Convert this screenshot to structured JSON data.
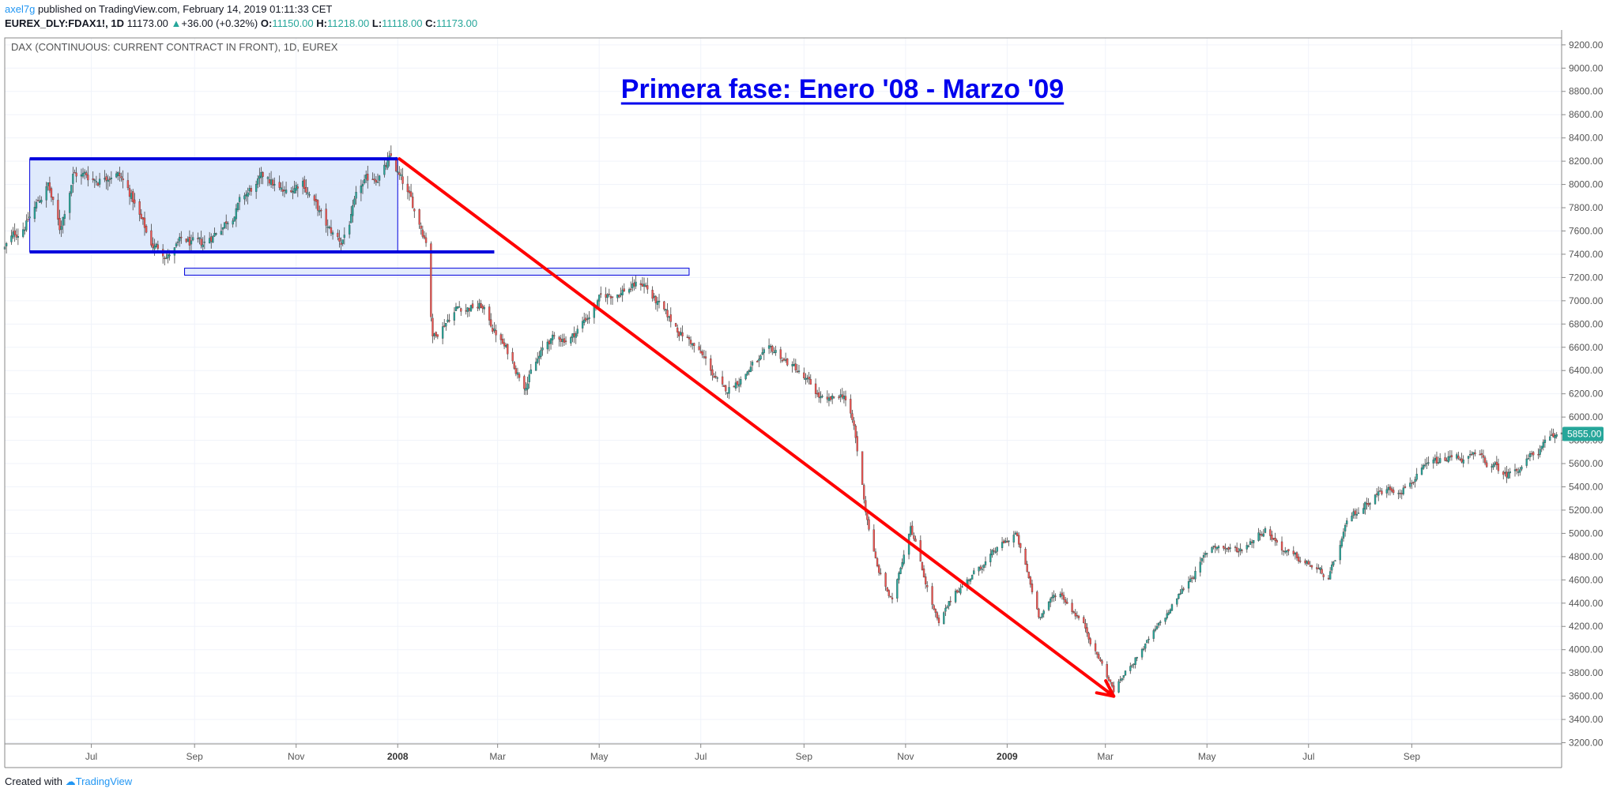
{
  "header": {
    "author": "axel7g",
    "published_text": "published on TradingView.com, February 14, 2019 01:11:33 CET",
    "symbol": "EUREX_DLY:FDAX1!, 1D",
    "last": "11173.00",
    "change": "+36.00 (+0.32%)",
    "open_label": "O:",
    "open": "11150.00",
    "high_label": "H:",
    "high": "11218.00",
    "low_label": "L:",
    "low": "11118.00",
    "close_label": "C:",
    "close": "11173.00"
  },
  "footer": {
    "created_text": "Created with",
    "brand": "TradingView"
  },
  "chart_data": {
    "type": "candlestick",
    "instrument_label": "DAX (CONTINUOUS: CURRENT CONTRACT IN FRONT), 1D, EUREX",
    "title": "Primera fase: Enero '08 - Marzo '09",
    "y_ticks": [
      3200,
      3400,
      3600,
      3800,
      4000,
      4200,
      4400,
      4600,
      4800,
      5000,
      5200,
      5400,
      5600,
      5800,
      6000,
      6200,
      6400,
      6600,
      6800,
      7000,
      7200,
      7400,
      7600,
      7800,
      8000,
      8200,
      8400,
      8600,
      8800,
      9000,
      9200
    ],
    "y_tick_labels": [
      "3200.00",
      "3400.00",
      "3600.00",
      "3800.00",
      "4000.00",
      "4200.00",
      "4400.00",
      "4600.00",
      "4800.00",
      "5000.00",
      "5200.00",
      "5400.00",
      "5600.00",
      "5800.00",
      "6000.00",
      "6200.00",
      "6400.00",
      "6600.00",
      "6800.00",
      "7000.00",
      "7200.00",
      "7400.00",
      "7600.00",
      "7800.00",
      "8000.00",
      "8200.00",
      "8400.00",
      "8600.00",
      "8800.00",
      "9000.00",
      "9200.00"
    ],
    "ylim": [
      3190,
      9260
    ],
    "x_ticks": [
      {
        "label": "Jul",
        "date": "2007-07-01",
        "bold": false
      },
      {
        "label": "Sep",
        "date": "2007-09-01",
        "bold": false
      },
      {
        "label": "Nov",
        "date": "2007-11-01",
        "bold": false
      },
      {
        "label": "2008",
        "date": "2008-01-01",
        "bold": true
      },
      {
        "label": "Mar",
        "date": "2008-03-01",
        "bold": false
      },
      {
        "label": "May",
        "date": "2008-05-01",
        "bold": false
      },
      {
        "label": "Jul",
        "date": "2008-07-01",
        "bold": false
      },
      {
        "label": "Sep",
        "date": "2008-09-01",
        "bold": false
      },
      {
        "label": "Nov",
        "date": "2008-11-01",
        "bold": false
      },
      {
        "label": "2009",
        "date": "2009-01-01",
        "bold": true
      },
      {
        "label": "Mar",
        "date": "2009-03-01",
        "bold": false
      },
      {
        "label": "May",
        "date": "2009-05-01",
        "bold": false
      },
      {
        "label": "Jul",
        "date": "2009-07-01",
        "bold": false
      },
      {
        "label": "Sep",
        "date": "2009-09-01",
        "bold": false
      }
    ],
    "xlim": [
      "2007-05-10",
      "2009-11-30"
    ],
    "last_price_label": "5855.00",
    "last_price": 5855,
    "colors": {
      "up": "#26a69a",
      "down": "#ef5350",
      "annotation_blue": "#0000dd",
      "arrow_red": "#ff0000",
      "box_fill": "#d9e6fb",
      "price_tag": "#26a69a"
    },
    "price_path": [
      [
        "2007-05-10",
        7450
      ],
      [
        "2007-05-25",
        7720
      ],
      [
        "2007-06-05",
        8000
      ],
      [
        "2007-06-12",
        7600
      ],
      [
        "2007-06-20",
        8100
      ],
      [
        "2007-07-05",
        8050
      ],
      [
        "2007-07-15",
        8150
      ],
      [
        "2007-07-25",
        7900
      ],
      [
        "2007-08-05",
        7500
      ],
      [
        "2007-08-16",
        7400
      ],
      [
        "2007-08-25",
        7500
      ],
      [
        "2007-09-05",
        7450
      ],
      [
        "2007-09-20",
        7700
      ],
      [
        "2007-10-05",
        7950
      ],
      [
        "2007-10-15",
        8050
      ],
      [
        "2007-10-25",
        7900
      ],
      [
        "2007-11-05",
        8050
      ],
      [
        "2007-11-20",
        7600
      ],
      [
        "2007-11-28",
        7500
      ],
      [
        "2007-12-10",
        7950
      ],
      [
        "2007-12-28",
        8200
      ],
      [
        "2008-01-10",
        7800
      ],
      [
        "2008-01-18",
        7550
      ],
      [
        "2008-01-22",
        6700
      ],
      [
        "2008-02-05",
        6950
      ],
      [
        "2008-02-20",
        6950
      ],
      [
        "2008-03-05",
        6600
      ],
      [
        "2008-03-17",
        6300
      ],
      [
        "2008-04-01",
        6650
      ],
      [
        "2008-04-15",
        6700
      ],
      [
        "2008-05-01",
        7000
      ],
      [
        "2008-05-15",
        7100
      ],
      [
        "2008-05-28",
        7150
      ],
      [
        "2008-06-10",
        6850
      ],
      [
        "2008-06-25",
        6650
      ],
      [
        "2008-07-05",
        6450
      ],
      [
        "2008-07-15",
        6200
      ],
      [
        "2008-08-01",
        6450
      ],
      [
        "2008-08-15",
        6550
      ],
      [
        "2008-08-28",
        6400
      ],
      [
        "2008-09-05",
        6250
      ],
      [
        "2008-09-15",
        6100
      ],
      [
        "2008-09-25",
        6200
      ],
      [
        "2008-10-01",
        5900
      ],
      [
        "2008-10-08",
        5200
      ],
      [
        "2008-10-15",
        4700
      ],
      [
        "2008-10-24",
        4400
      ],
      [
        "2008-11-04",
        5100
      ],
      [
        "2008-11-12",
        4650
      ],
      [
        "2008-11-21",
        4200
      ],
      [
        "2008-12-01",
        4500
      ],
      [
        "2008-12-15",
        4700
      ],
      [
        "2009-01-06",
        5000
      ],
      [
        "2009-01-20",
        4300
      ],
      [
        "2009-02-01",
        4500
      ],
      [
        "2009-02-15",
        4250
      ],
      [
        "2009-03-06",
        3650
      ],
      [
        "2009-03-20",
        3950
      ],
      [
        "2009-04-05",
        4250
      ],
      [
        "2009-04-20",
        4600
      ],
      [
        "2009-05-05",
        4900
      ],
      [
        "2009-05-20",
        4850
      ],
      [
        "2009-06-05",
        5050
      ],
      [
        "2009-06-20",
        4800
      ],
      [
        "2009-07-05",
        4700
      ],
      [
        "2009-07-13",
        4600
      ],
      [
        "2009-07-25",
        5100
      ],
      [
        "2009-08-10",
        5350
      ],
      [
        "2009-08-25",
        5400
      ],
      [
        "2009-09-10",
        5550
      ],
      [
        "2009-09-25",
        5650
      ],
      [
        "2009-10-10",
        5650
      ],
      [
        "2009-10-28",
        5500
      ],
      [
        "2009-11-10",
        5650
      ],
      [
        "2009-11-30",
        5855
      ]
    ],
    "annotations": {
      "box": {
        "from": "2007-05-25",
        "to": "2008-01-01",
        "low": 7420,
        "high": 8220
      },
      "support_line": {
        "from": "2007-05-25",
        "to": "2008-02-28",
        "price": 7420
      },
      "resistance_line": {
        "from": "2007-05-25",
        "to": "2008-01-01",
        "price": 8220
      },
      "thin_box": {
        "from": "2007-08-26",
        "to": "2008-06-24",
        "low": 7220,
        "high": 7280
      },
      "arrow": {
        "from_date": "2008-01-02",
        "from_price": 8220,
        "to_date": "2009-03-06",
        "to_price": 3600
      }
    }
  }
}
